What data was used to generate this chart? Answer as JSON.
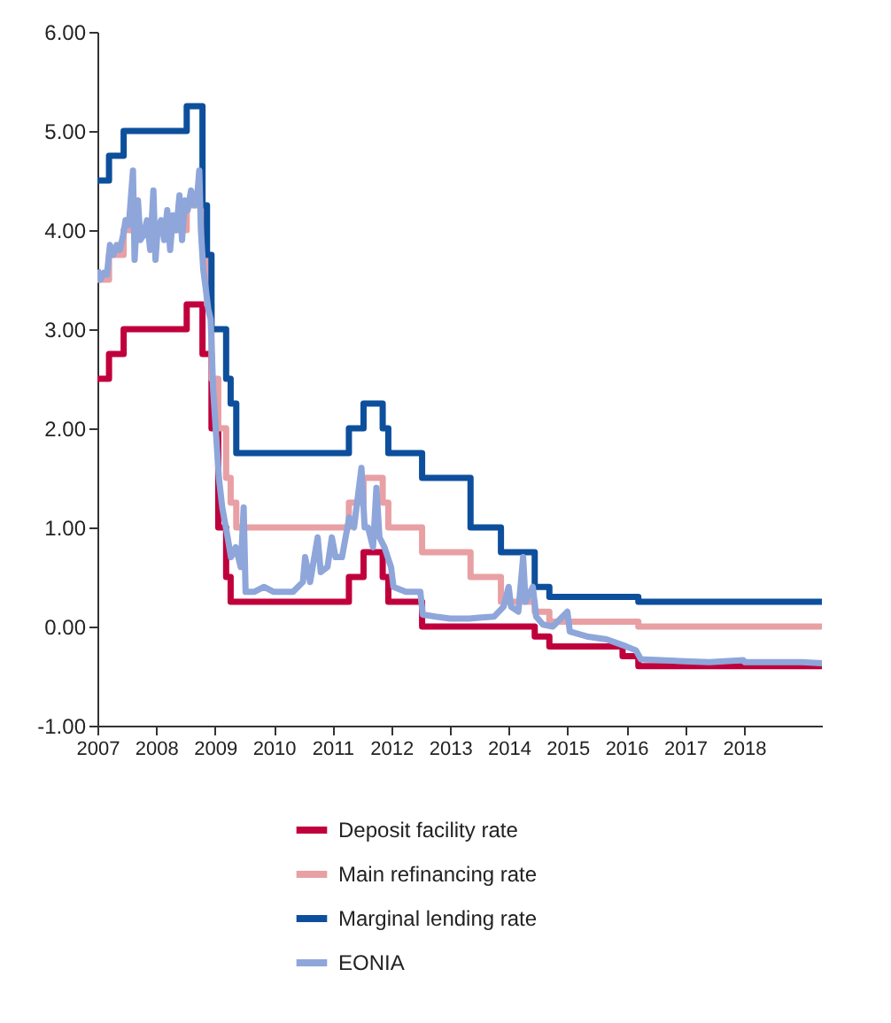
{
  "chart_data": {
    "type": "step",
    "xlim": [
      "2007-01-01",
      "2019-05-01"
    ],
    "xticks": [
      "2007",
      "2008",
      "2009",
      "2010",
      "2011",
      "2012",
      "2013",
      "2014",
      "2015",
      "2016",
      "2017",
      "2018"
    ],
    "ylim": [
      -1,
      6
    ],
    "yticks": [
      {
        "value": -1,
        "label": "-1.00"
      },
      {
        "value": 0,
        "label": "0.00"
      },
      {
        "value": 1,
        "label": "1.00"
      },
      {
        "value": 2,
        "label": "2.00"
      },
      {
        "value": 3,
        "label": "3.00"
      },
      {
        "value": 4,
        "label": "4.00"
      },
      {
        "value": 5,
        "label": "5.00"
      },
      {
        "value": 6,
        "label": "6.00"
      }
    ],
    "legend": "bottom",
    "marker": "none",
    "line_style": "solid",
    "series": [
      {
        "name": "Deposit facility rate",
        "color": "#c0003c",
        "type": "step",
        "x": [
          "2007-01-01",
          "2007-03-14",
          "2007-06-13",
          "2008-07-09",
          "2008-10-15",
          "2008-12-10",
          "2009-01-21",
          "2009-03-11",
          "2009-04-08",
          "2011-04-13",
          "2011-07-13",
          "2011-11-09",
          "2011-12-14",
          "2012-07-11",
          "2014-06-11",
          "2014-09-10",
          "2015-12-09",
          "2016-03-16",
          "2019-05-01"
        ],
        "values": [
          2.5,
          2.75,
          3.0,
          3.25,
          2.75,
          2.0,
          1.0,
          0.5,
          0.25,
          0.5,
          0.75,
          0.5,
          0.25,
          0.0,
          -0.1,
          -0.2,
          -0.3,
          -0.4,
          -0.4
        ]
      },
      {
        "name": "Main refinancing rate",
        "color": "#e8a0a4",
        "type": "step",
        "x": [
          "2007-01-01",
          "2007-03-14",
          "2007-06-13",
          "2008-07-09",
          "2008-10-15",
          "2008-11-12",
          "2008-12-10",
          "2009-01-21",
          "2009-03-11",
          "2009-04-08",
          "2009-05-13",
          "2011-04-13",
          "2011-07-13",
          "2011-11-09",
          "2011-12-14",
          "2012-07-11",
          "2013-05-08",
          "2013-11-13",
          "2014-06-11",
          "2014-09-10",
          "2016-03-16",
          "2019-05-01"
        ],
        "values": [
          3.5,
          3.75,
          4.0,
          4.25,
          3.75,
          3.25,
          2.5,
          2.0,
          1.5,
          1.25,
          1.0,
          1.25,
          1.5,
          1.25,
          1.0,
          0.75,
          0.5,
          0.25,
          0.15,
          0.05,
          0.0,
          0.0
        ]
      },
      {
        "name": "Marginal lending rate",
        "color": "#0d4f9c",
        "type": "step",
        "x": [
          "2007-01-01",
          "2007-03-14",
          "2007-06-13",
          "2008-07-09",
          "2008-10-15",
          "2008-11-12",
          "2008-12-10",
          "2009-03-11",
          "2009-04-08",
          "2009-05-13",
          "2011-04-13",
          "2011-07-13",
          "2011-11-09",
          "2011-12-14",
          "2012-07-11",
          "2013-05-08",
          "2013-11-13",
          "2014-06-11",
          "2014-09-10",
          "2016-03-16",
          "2019-05-01"
        ],
        "values": [
          4.5,
          4.75,
          5.0,
          5.25,
          4.25,
          3.75,
          3.0,
          2.5,
          2.25,
          1.75,
          2.0,
          2.25,
          2.0,
          1.75,
          1.5,
          1.0,
          0.75,
          0.4,
          0.3,
          0.25,
          0.25
        ]
      },
      {
        "name": "EONIA",
        "color": "#8ea6da",
        "type": "line",
        "x": [
          "2007-01-02",
          "2007-01-20",
          "2007-02-10",
          "2007-03-01",
          "2007-03-20",
          "2007-04-10",
          "2007-05-01",
          "2007-05-20",
          "2007-06-10",
          "2007-06-25",
          "2007-07-15",
          "2007-08-10",
          "2007-08-20",
          "2007-09-10",
          "2007-09-25",
          "2007-10-15",
          "2007-11-05",
          "2007-11-25",
          "2007-12-15",
          "2007-12-28",
          "2008-01-10",
          "2008-02-01",
          "2008-02-20",
          "2008-03-10",
          "2008-03-28",
          "2008-04-15",
          "2008-05-05",
          "2008-05-25",
          "2008-06-10",
          "2008-06-28",
          "2008-07-15",
          "2008-08-05",
          "2008-08-25",
          "2008-09-10",
          "2008-09-25",
          "2008-10-05",
          "2008-10-20",
          "2008-11-05",
          "2008-11-20",
          "2008-12-05",
          "2008-12-20",
          "2009-01-05",
          "2009-01-25",
          "2009-02-15",
          "2009-03-15",
          "2009-04-10",
          "2009-05-10",
          "2009-06-10",
          "2009-06-28",
          "2009-07-10",
          "2009-09-01",
          "2009-11-01",
          "2010-01-01",
          "2010-03-01",
          "2010-05-01",
          "2010-07-01",
          "2010-07-15",
          "2010-08-15",
          "2010-10-01",
          "2010-10-20",
          "2010-12-01",
          "2010-12-28",
          "2011-01-20",
          "2011-03-01",
          "2011-04-15",
          "2011-05-15",
          "2011-06-30",
          "2011-07-20",
          "2011-08-10",
          "2011-09-10",
          "2011-10-01",
          "2011-10-20",
          "2011-11-20",
          "2011-12-31",
          "2012-01-15",
          "2012-04-01",
          "2012-06-30",
          "2012-07-15",
          "2012-10-01",
          "2013-01-01",
          "2013-05-01",
          "2013-07-01",
          "2013-10-01",
          "2013-11-29",
          "2013-12-31",
          "2014-01-15",
          "2014-03-01",
          "2014-03-31",
          "2014-04-15",
          "2014-05-30",
          "2014-06-20",
          "2014-08-01",
          "2014-10-01",
          "2014-12-31",
          "2015-01-15",
          "2015-05-01",
          "2015-09-01",
          "2015-12-31",
          "2016-03-01",
          "2016-04-01",
          "2016-12-30",
          "2017-06-01",
          "2017-12-29",
          "2018-01-05",
          "2018-06-01",
          "2018-12-31",
          "2019-05-01"
        ],
        "values": [
          3.6,
          3.5,
          3.57,
          3.55,
          3.85,
          3.75,
          3.85,
          3.8,
          3.95,
          4.1,
          4.05,
          4.6,
          3.7,
          4.3,
          3.9,
          3.95,
          4.1,
          3.8,
          4.4,
          3.7,
          4.0,
          4.1,
          3.9,
          4.2,
          3.8,
          4.15,
          4.0,
          4.35,
          3.9,
          4.3,
          4.2,
          4.4,
          4.25,
          4.3,
          4.6,
          4.0,
          3.6,
          3.4,
          3.2,
          3.1,
          2.4,
          2.0,
          1.5,
          1.2,
          0.95,
          0.7,
          0.8,
          0.6,
          1.2,
          0.35,
          0.35,
          0.4,
          0.35,
          0.35,
          0.35,
          0.45,
          0.7,
          0.45,
          0.9,
          0.55,
          0.6,
          0.9,
          0.7,
          0.7,
          1.1,
          1.0,
          1.6,
          1.0,
          1.0,
          0.8,
          1.4,
          0.9,
          0.8,
          0.6,
          0.4,
          0.35,
          0.35,
          0.12,
          0.1,
          0.08,
          0.08,
          0.09,
          0.1,
          0.2,
          0.4,
          0.2,
          0.15,
          0.7,
          0.25,
          0.4,
          0.1,
          0.02,
          0.0,
          0.15,
          -0.05,
          -0.1,
          -0.13,
          -0.2,
          -0.24,
          -0.33,
          -0.35,
          -0.36,
          -0.34,
          -0.36,
          -0.36,
          -0.36,
          -0.37
        ]
      }
    ]
  }
}
